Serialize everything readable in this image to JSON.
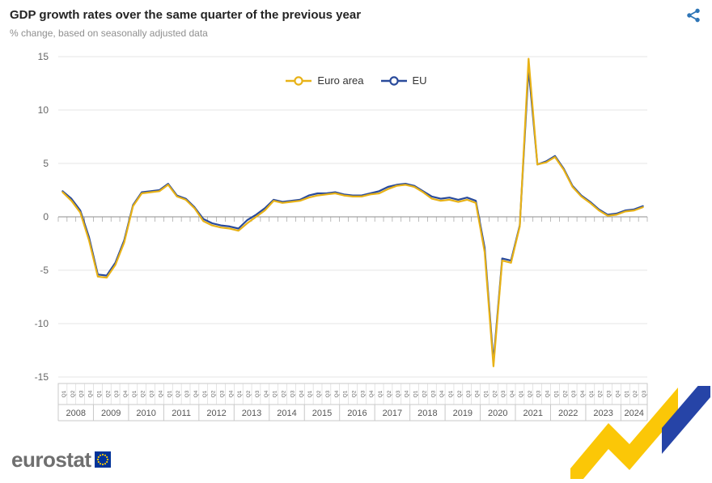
{
  "header": {
    "title": "GDP growth rates over the same quarter of the previous year",
    "subtitle": "% change, based on seasonally adjusted data"
  },
  "colors": {
    "euro_area": "#E8B217",
    "eu": "#2A4B9B",
    "share_icon": "#2E75B6",
    "grid": "#E5E5E5",
    "zero_line": "#8F8F8F",
    "axis_text": "#666666",
    "eu_flag_blue": "#003399",
    "eu_flag_star_yellow": "#FFCC00",
    "motif_yellow": "#FBC707",
    "motif_blue": "#2644A7"
  },
  "chart_data": {
    "type": "line",
    "title": "GDP growth rates over the same quarter of the previous year",
    "subtitle": "% change, based on seasonally adjusted data",
    "ylabel": "% change",
    "ylim": [
      -15,
      15
    ],
    "yticks": [
      -15,
      -10,
      -5,
      0,
      5,
      10,
      15
    ],
    "grid": true,
    "legend_position": "top-center",
    "quarter_labels": [
      "Q1",
      "Q2",
      "Q3",
      "Q4"
    ],
    "years": [
      {
        "label": "2008",
        "quarters": 4
      },
      {
        "label": "2009",
        "quarters": 4
      },
      {
        "label": "2010",
        "quarters": 4
      },
      {
        "label": "2011",
        "quarters": 4
      },
      {
        "label": "2012",
        "quarters": 4
      },
      {
        "label": "2013",
        "quarters": 4
      },
      {
        "label": "2014",
        "quarters": 4
      },
      {
        "label": "2015",
        "quarters": 4
      },
      {
        "label": "2016",
        "quarters": 4
      },
      {
        "label": "2017",
        "quarters": 4
      },
      {
        "label": "2018",
        "quarters": 4
      },
      {
        "label": "2019",
        "quarters": 4
      },
      {
        "label": "2020",
        "quarters": 4
      },
      {
        "label": "2021",
        "quarters": 4
      },
      {
        "label": "2022",
        "quarters": 4
      },
      {
        "label": "2023",
        "quarters": 4
      },
      {
        "label": "2024",
        "quarters": 3
      }
    ],
    "series": [
      {
        "name": "Euro area",
        "color": "#E8B217",
        "values": [
          2.3,
          1.5,
          0.4,
          -2.2,
          -5.6,
          -5.7,
          -4.5,
          -2.4,
          1.0,
          2.2,
          2.3,
          2.4,
          3.0,
          1.9,
          1.6,
          0.8,
          -0.4,
          -0.8,
          -1.0,
          -1.1,
          -1.3,
          -0.6,
          0.0,
          0.6,
          1.5,
          1.3,
          1.4,
          1.5,
          1.8,
          2.0,
          2.1,
          2.2,
          2.0,
          1.9,
          1.9,
          2.1,
          2.2,
          2.6,
          2.9,
          3.0,
          2.8,
          2.3,
          1.7,
          1.5,
          1.6,
          1.4,
          1.6,
          1.3,
          -3.3,
          -14.0,
          -4.1,
          -4.3,
          -0.9,
          14.8,
          4.9,
          5.1,
          5.6,
          4.4,
          2.8,
          1.9,
          1.3,
          0.6,
          0.1,
          0.2,
          0.5,
          0.6,
          0.9
        ]
      },
      {
        "name": "EU",
        "color": "#2A4B9B",
        "values": [
          2.4,
          1.7,
          0.6,
          -1.9,
          -5.4,
          -5.5,
          -4.3,
          -2.2,
          1.1,
          2.3,
          2.4,
          2.5,
          3.1,
          2.0,
          1.7,
          0.9,
          -0.2,
          -0.6,
          -0.8,
          -0.9,
          -1.1,
          -0.3,
          0.2,
          0.8,
          1.6,
          1.4,
          1.5,
          1.6,
          2.0,
          2.2,
          2.2,
          2.3,
          2.1,
          2.0,
          2.0,
          2.2,
          2.4,
          2.8,
          3.0,
          3.1,
          2.9,
          2.4,
          1.9,
          1.7,
          1.8,
          1.6,
          1.8,
          1.5,
          -2.9,
          -13.6,
          -3.9,
          -4.1,
          -0.8,
          13.9,
          4.9,
          5.2,
          5.7,
          4.5,
          2.9,
          2.0,
          1.4,
          0.7,
          0.2,
          0.3,
          0.6,
          0.7,
          1.0
        ]
      }
    ]
  },
  "footer": {
    "logo_text": "eurostat"
  }
}
